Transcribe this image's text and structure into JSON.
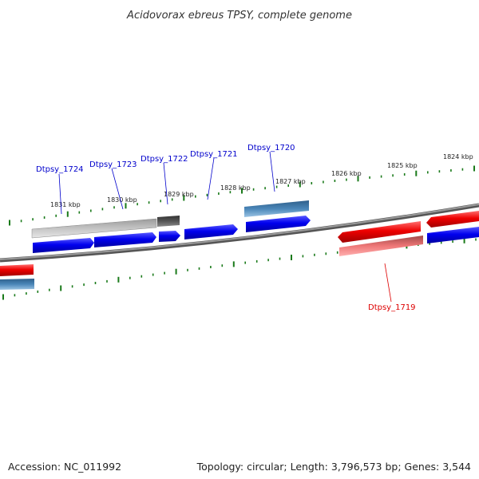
{
  "title": "Acidovorax ebreus TPSY, complete genome",
  "footer": {
    "accession": "Accession: NC_011992",
    "topology": "Topology: circular; Length: 3,796,573 bp; Genes: 3,544"
  },
  "colors": {
    "backbone": "#7a7a7a",
    "tick": "#1a7a1a",
    "label_blue": "#0000cc",
    "label_red": "#dd0000",
    "cds_blue": "#0000ee",
    "cds_red": "#ee0000",
    "gene_steel": "#4a86b8",
    "gene_gray": "#c4c4c4",
    "gene_dark": "#555555",
    "gene_pink": "#ee7777"
  },
  "scale_labels": [
    "1831 kbp",
    "1830 kbp",
    "1829 kbp",
    "1828 kbp",
    "1827 kbp",
    "1826 kbp",
    "1825 kbp",
    "1824 kbp"
  ],
  "gene_labels": [
    "Dtpsy_1724",
    "Dtpsy_1723",
    "Dtpsy_1722",
    "Dtpsy_1721",
    "Dtpsy_1720",
    "Dtpsy_1719"
  ]
}
